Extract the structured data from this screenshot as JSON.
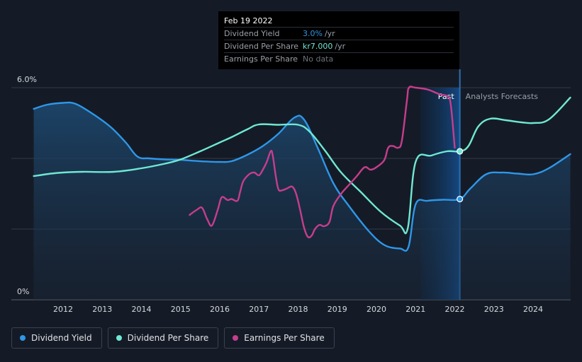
{
  "chart_data": {
    "type": "line",
    "y_axis": {
      "unit": "%",
      "labels": [
        "6.0%",
        "0%"
      ],
      "ylim": [
        0,
        6.0
      ]
    },
    "x_ticks": [
      "2012",
      "2013",
      "2014",
      "2015",
      "2016",
      "2017",
      "2018",
      "2019",
      "2020",
      "2021",
      "2022",
      "2023",
      "2024"
    ],
    "xlim": [
      2011.25,
      2024.95
    ],
    "grid": true,
    "past_label": "Past",
    "forecast_label": "Analysts Forecasts",
    "highlight_date": 2022.13,
    "series": [
      {
        "name": "Dividend Yield",
        "color": "#2e97e8",
        "area": true,
        "points": [
          [
            2011.25,
            5.4
          ],
          [
            2011.6,
            5.52
          ],
          [
            2012.0,
            5.57
          ],
          [
            2012.3,
            5.55
          ],
          [
            2012.7,
            5.3
          ],
          [
            2013.2,
            4.9
          ],
          [
            2013.6,
            4.45
          ],
          [
            2013.9,
            4.05
          ],
          [
            2014.2,
            4.0
          ],
          [
            2014.6,
            3.97
          ],
          [
            2015.0,
            3.96
          ],
          [
            2015.5,
            3.92
          ],
          [
            2016.0,
            3.9
          ],
          [
            2016.3,
            3.92
          ],
          [
            2016.7,
            4.1
          ],
          [
            2017.1,
            4.35
          ],
          [
            2017.5,
            4.7
          ],
          [
            2017.9,
            5.15
          ],
          [
            2018.15,
            5.1
          ],
          [
            2018.5,
            4.3
          ],
          [
            2018.9,
            3.3
          ],
          [
            2019.3,
            2.65
          ],
          [
            2019.8,
            1.95
          ],
          [
            2020.2,
            1.55
          ],
          [
            2020.6,
            1.45
          ],
          [
            2020.82,
            1.5
          ],
          [
            2021.0,
            2.7
          ],
          [
            2021.3,
            2.8
          ],
          [
            2021.7,
            2.83
          ],
          [
            2022.13,
            2.85
          ],
          [
            2022.4,
            3.15
          ],
          [
            2022.8,
            3.55
          ],
          [
            2023.2,
            3.6
          ],
          [
            2023.6,
            3.57
          ],
          [
            2024.0,
            3.55
          ],
          [
            2024.4,
            3.72
          ],
          [
            2024.95,
            4.12
          ]
        ]
      },
      {
        "name": "Dividend Per Share",
        "color": "#6fe8d3",
        "area": false,
        "points": [
          [
            2011.25,
            3.5
          ],
          [
            2011.7,
            3.57
          ],
          [
            2012.0,
            3.6
          ],
          [
            2012.5,
            3.62
          ],
          [
            2013.3,
            3.62
          ],
          [
            2014.0,
            3.72
          ],
          [
            2014.6,
            3.85
          ],
          [
            2015.0,
            3.97
          ],
          [
            2015.5,
            4.2
          ],
          [
            2016.0,
            4.45
          ],
          [
            2016.3,
            4.6
          ],
          [
            2016.7,
            4.82
          ],
          [
            2017.0,
            4.96
          ],
          [
            2017.5,
            4.95
          ],
          [
            2018.0,
            4.95
          ],
          [
            2018.3,
            4.75
          ],
          [
            2018.7,
            4.2
          ],
          [
            2019.1,
            3.6
          ],
          [
            2019.6,
            3.05
          ],
          [
            2020.1,
            2.5
          ],
          [
            2020.6,
            2.1
          ],
          [
            2020.8,
            2.02
          ],
          [
            2021.0,
            3.9
          ],
          [
            2021.4,
            4.08
          ],
          [
            2021.8,
            4.2
          ],
          [
            2022.13,
            4.2
          ],
          [
            2022.35,
            4.35
          ],
          [
            2022.6,
            4.9
          ],
          [
            2022.9,
            5.12
          ],
          [
            2023.3,
            5.08
          ],
          [
            2023.7,
            5.02
          ],
          [
            2024.0,
            5.0
          ],
          [
            2024.4,
            5.1
          ],
          [
            2024.95,
            5.72
          ]
        ]
      },
      {
        "name": "Earnings Per Share",
        "color": "#c73d8d",
        "area": false,
        "points": [
          [
            2015.23,
            2.4
          ],
          [
            2015.42,
            2.55
          ],
          [
            2015.55,
            2.6
          ],
          [
            2015.68,
            2.28
          ],
          [
            2015.8,
            2.1
          ],
          [
            2015.95,
            2.55
          ],
          [
            2016.05,
            2.9
          ],
          [
            2016.2,
            2.82
          ],
          [
            2016.3,
            2.85
          ],
          [
            2016.45,
            2.8
          ],
          [
            2016.52,
            3.05
          ],
          [
            2016.6,
            3.35
          ],
          [
            2016.75,
            3.55
          ],
          [
            2016.88,
            3.6
          ],
          [
            2017.0,
            3.52
          ],
          [
            2017.1,
            3.68
          ],
          [
            2017.2,
            3.9
          ],
          [
            2017.3,
            4.2
          ],
          [
            2017.35,
            4.1
          ],
          [
            2017.43,
            3.5
          ],
          [
            2017.5,
            3.12
          ],
          [
            2017.6,
            3.1
          ],
          [
            2017.72,
            3.15
          ],
          [
            2017.85,
            3.2
          ],
          [
            2017.95,
            3.0
          ],
          [
            2018.05,
            2.55
          ],
          [
            2018.15,
            2.05
          ],
          [
            2018.25,
            1.78
          ],
          [
            2018.35,
            1.82
          ],
          [
            2018.43,
            2.0
          ],
          [
            2018.55,
            2.12
          ],
          [
            2018.66,
            2.08
          ],
          [
            2018.8,
            2.2
          ],
          [
            2018.9,
            2.65
          ],
          [
            2019.1,
            3.0
          ],
          [
            2019.3,
            3.25
          ],
          [
            2019.5,
            3.5
          ],
          [
            2019.7,
            3.75
          ],
          [
            2019.85,
            3.68
          ],
          [
            2020.0,
            3.75
          ],
          [
            2020.2,
            3.95
          ],
          [
            2020.3,
            4.3
          ],
          [
            2020.42,
            4.35
          ],
          [
            2020.55,
            4.3
          ],
          [
            2020.65,
            4.5
          ],
          [
            2020.78,
            5.65
          ],
          [
            2020.83,
            6.0
          ],
          [
            2021.0,
            6.0
          ],
          [
            2021.3,
            5.95
          ],
          [
            2021.6,
            5.82
          ],
          [
            2021.82,
            5.75
          ],
          [
            2021.9,
            5.5
          ],
          [
            2022.0,
            4.3
          ]
        ]
      }
    ],
    "highlight_points": [
      {
        "series": "Dividend Per Share",
        "x": 2022.13,
        "y": 4.2
      },
      {
        "series": "Dividend Yield",
        "x": 2022.13,
        "y": 2.85
      }
    ]
  },
  "tooltip": {
    "date": "Feb 19 2022",
    "rows": [
      {
        "label": "Dividend Yield",
        "value": "3.0%",
        "unit": "/yr",
        "color": "#2e97e8"
      },
      {
        "label": "Dividend Per Share",
        "value": "kr7.000",
        "unit": "/yr",
        "color": "#6fe8d3"
      },
      {
        "label": "Earnings Per Share",
        "value": "No data",
        "unit": "",
        "color": "#6b717b"
      }
    ]
  },
  "legend": [
    {
      "label": "Dividend Yield",
      "color": "#2e97e8"
    },
    {
      "label": "Dividend Per Share",
      "color": "#6fe8d3"
    },
    {
      "label": "Earnings Per Share",
      "color": "#c73d8d"
    }
  ]
}
